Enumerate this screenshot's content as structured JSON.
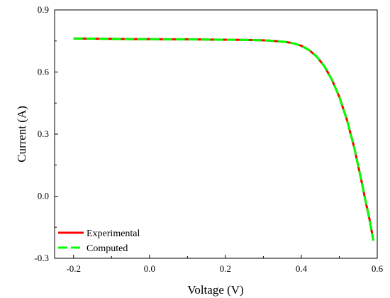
{
  "chart_data": {
    "type": "line",
    "title": "",
    "xlabel": "Voltage (V)",
    "ylabel": "Current (A)",
    "xlim": [
      -0.25,
      0.6
    ],
    "ylim": [
      -0.3,
      0.9
    ],
    "xticks": [
      -0.2,
      0.0,
      0.2,
      0.4,
      0.6
    ],
    "xtick_labels": [
      "-0.2",
      "0.0",
      "0.2",
      "0.4",
      "0.6"
    ],
    "yticks": [
      -0.3,
      0.0,
      0.3,
      0.6,
      0.9
    ],
    "ytick_labels": [
      "-0.3",
      "0.0",
      "0.3",
      "0.6",
      "0.9"
    ],
    "grid": false,
    "legend_position": "bottom-left",
    "series": [
      {
        "name": "Experimental",
        "color": "#ff0000",
        "style": "solid",
        "x": [
          -0.2,
          -0.15,
          -0.1,
          -0.05,
          0.0,
          0.05,
          0.1,
          0.15,
          0.2,
          0.25,
          0.3,
          0.33,
          0.36,
          0.38,
          0.4,
          0.42,
          0.44,
          0.46,
          0.48,
          0.5,
          0.52,
          0.54,
          0.56,
          0.57,
          0.58,
          0.59
        ],
        "y": [
          0.762,
          0.761,
          0.76,
          0.759,
          0.759,
          0.758,
          0.758,
          0.757,
          0.756,
          0.755,
          0.753,
          0.75,
          0.745,
          0.738,
          0.727,
          0.707,
          0.675,
          0.63,
          0.565,
          0.48,
          0.37,
          0.23,
          0.06,
          -0.03,
          -0.115,
          -0.215
        ]
      },
      {
        "name": "Computed",
        "color": "#00ff00",
        "style": "dashed",
        "x": [
          -0.2,
          -0.15,
          -0.1,
          -0.05,
          0.0,
          0.05,
          0.1,
          0.15,
          0.2,
          0.25,
          0.3,
          0.33,
          0.36,
          0.38,
          0.4,
          0.42,
          0.44,
          0.46,
          0.48,
          0.5,
          0.52,
          0.54,
          0.56,
          0.57,
          0.58,
          0.59
        ],
        "y": [
          0.762,
          0.761,
          0.76,
          0.759,
          0.759,
          0.758,
          0.758,
          0.757,
          0.756,
          0.755,
          0.753,
          0.75,
          0.745,
          0.738,
          0.727,
          0.707,
          0.675,
          0.63,
          0.565,
          0.48,
          0.37,
          0.23,
          0.06,
          -0.03,
          -0.115,
          -0.215
        ]
      }
    ]
  }
}
